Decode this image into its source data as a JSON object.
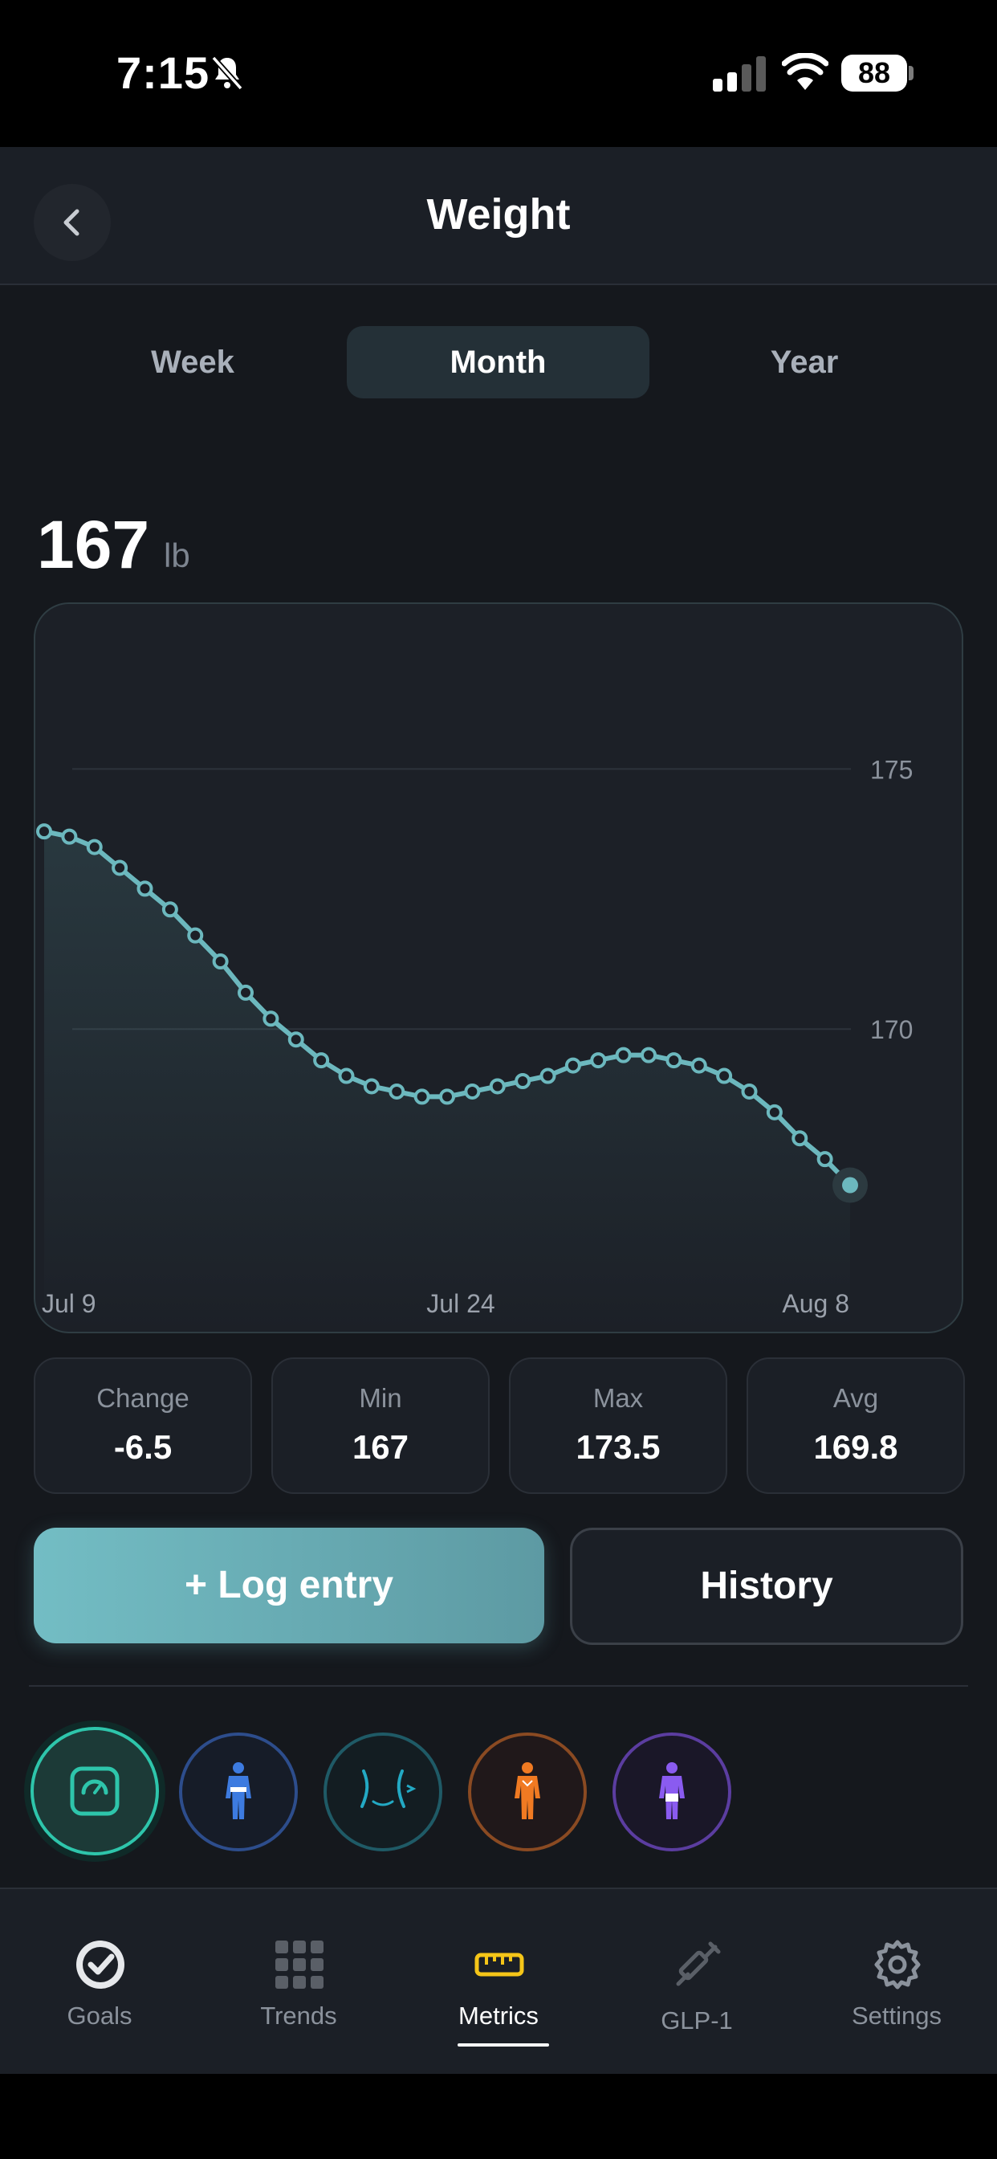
{
  "status_bar": {
    "time": "7:15",
    "battery": "88"
  },
  "header": {
    "title": "Weight"
  },
  "range_tabs": {
    "week": "Week",
    "month": "Month",
    "year": "Year",
    "selected": "Month"
  },
  "current": {
    "value": "167",
    "unit": "lb"
  },
  "chart_data": {
    "type": "area",
    "x_tick_labels": [
      "Jul 9",
      "Jul 24",
      "Aug 8"
    ],
    "y_tick_labels": [
      "175",
      "170"
    ],
    "ylim": [
      164.8,
      177.4
    ],
    "grid": true,
    "series": [
      {
        "values": [
          173.8,
          173.7,
          173.5,
          173.1,
          172.7,
          172.3,
          171.8,
          171.3,
          170.7,
          170.2,
          169.8,
          169.4,
          169.1,
          168.9,
          168.8,
          168.7,
          168.7,
          168.8,
          168.9,
          169.0,
          169.1,
          169.3,
          169.4,
          169.5,
          169.5,
          169.4,
          169.3,
          169.1,
          168.8,
          168.4,
          167.9,
          167.5,
          167.0
        ]
      }
    ],
    "colors": {
      "line": "#6cb8be",
      "grid": "#2d333b"
    }
  },
  "stats": {
    "change": {
      "label": "Change",
      "value": "-6.5"
    },
    "min": {
      "label": "Min",
      "value": "167"
    },
    "max": {
      "label": "Max",
      "value": "173.5"
    },
    "avg": {
      "label": "Avg",
      "value": "169.8"
    }
  },
  "actions": {
    "log_entry": "+ Log entry",
    "history": "History"
  },
  "metrics": [
    "scale-icon",
    "body-icon",
    "waist-icon",
    "muscle-icon",
    "body-fat-icon"
  ],
  "nav": {
    "goals": "Goals",
    "trends": "Trends",
    "metrics": "Metrics",
    "glp1": "GLP-1",
    "settings": "Settings",
    "active": "Metrics"
  }
}
